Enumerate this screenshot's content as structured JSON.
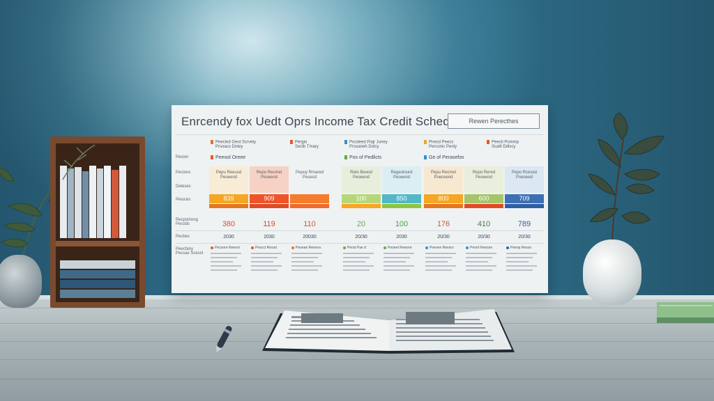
{
  "scene": {
    "description_colors": {
      "wall": "#3f7f98",
      "desk": "#aab5b8",
      "shelf": "#7a4a2e",
      "panel": "#eef2f3"
    }
  },
  "panel": {
    "title": "Enrcendy fox Uedt Oprs Income Tax Credit Schedule",
    "button": "Rewen Perecthes",
    "row_labels": [
      "Pesion",
      "Pecions",
      "Deleses",
      "Peiuces",
      "Recpstriong Pecods",
      "Pecbes",
      "Peecfany Pecsas Scesst"
    ],
    "group_headers": [
      {
        "label": "Peecled Geot Scrvety",
        "sub": "Prsoaco Dotey",
        "color": "#e2762a"
      },
      {
        "label": "Pergio",
        "sub": "Sectb Tmary",
        "color": "#e25a2a"
      },
      {
        "label": "Pocdeed Flajr Juney",
        "sub": "Prsoaneh Dolcy",
        "color": "#3a8fc4"
      },
      {
        "label": "Pnecd Peecs",
        "sub": "Perconic Penly",
        "color": "#e8a530"
      },
      {
        "label": "Peecti Pommp",
        "sub": "Scaltl Ddlvcy",
        "color": "#e25a2a"
      }
    ],
    "section_titles": [
      {
        "label": "Peeool Oreee",
        "color": "#e25a2a"
      },
      {
        "label": "Pos of Pedlicts",
        "color": "#6aa84a"
      },
      {
        "label": "Ge of Perasefos",
        "color": "#3a8fc4"
      }
    ],
    "columns": [
      {
        "cell": "Pepu Reeusd Peoeend",
        "bar_label": "839",
        "bar_color": "#f5a623",
        "stripe": "#e8761c",
        "value": "380",
        "value_color": "#d9532a",
        "year": "2030",
        "cell_bg": "#f8ecd6"
      },
      {
        "cell": "Repo Recmel Peoeend",
        "bar_label": "909",
        "bar_color": "#f0532a",
        "stripe": "#e24a24",
        "value": "119",
        "value_color": "#e0432a",
        "year": "2030",
        "cell_bg": "#f6d2c4"
      },
      {
        "cell": "Pepuy Rmared Pesesd",
        "bar_label": "",
        "bar_color": "#f47c2c",
        "stripe": "#f06a2a",
        "value": "110",
        "value_color": "#d9532a",
        "year": "20030",
        "cell_bg": "#eef2f3"
      },
      {
        "cell": "Reto Beood Peoeend",
        "bar_label": "100",
        "bar_color": "#b7d67a",
        "stripe": "#f5a623",
        "value": "20",
        "value_color": "#6aa84a",
        "year": "20/30",
        "cell_bg": "#e7efdc"
      },
      {
        "cell": "Regeolourd Peoeend",
        "bar_label": "850",
        "bar_color": "#52b7c7",
        "stripe": "#8cc63f",
        "value": "100",
        "value_color": "#4b9c4b",
        "year": "2030",
        "cell_bg": "#dbeef3"
      },
      {
        "cell": "Pepu Recmel Poeceend",
        "bar_label": "800",
        "bar_color": "#f5a623",
        "stripe": "#e8761c",
        "value": "176",
        "value_color": "#d9532a",
        "year": "20/30",
        "cell_bg": "#f7e8d2"
      },
      {
        "cell": "Repo Renrd Peoeend",
        "bar_label": "600",
        "bar_color": "#a6c46a",
        "stripe": "#e24a24",
        "value": "410",
        "value_color": "#4b7c4b",
        "year": "20/30",
        "cell_bg": "#e9efdc"
      },
      {
        "cell": "Pepo Rceced Poeoeed",
        "bar_label": "709",
        "bar_color": "#3d6fb5",
        "stripe": "#2f5ea3",
        "value": "789",
        "value_color": "#2f5ea3",
        "year": "20/30",
        "cell_bg": "#dbe7f3"
      }
    ],
    "note_heads": [
      "Pecoore Reesro",
      "Peocct Ressd",
      "Peoeae Reesna",
      "Peosl Pae d",
      "Peoeet Reesne",
      "Peeoen Reesro",
      "Peorrt Reesne",
      "Peeop Reoso"
    ],
    "note_icon_colors": [
      "#e25a2a",
      "#e25a2a",
      "#e8761c",
      "#6aa84a",
      "#6aa84a",
      "#3a8fc4",
      "#3a8fc4",
      "#2f5ea3"
    ]
  }
}
